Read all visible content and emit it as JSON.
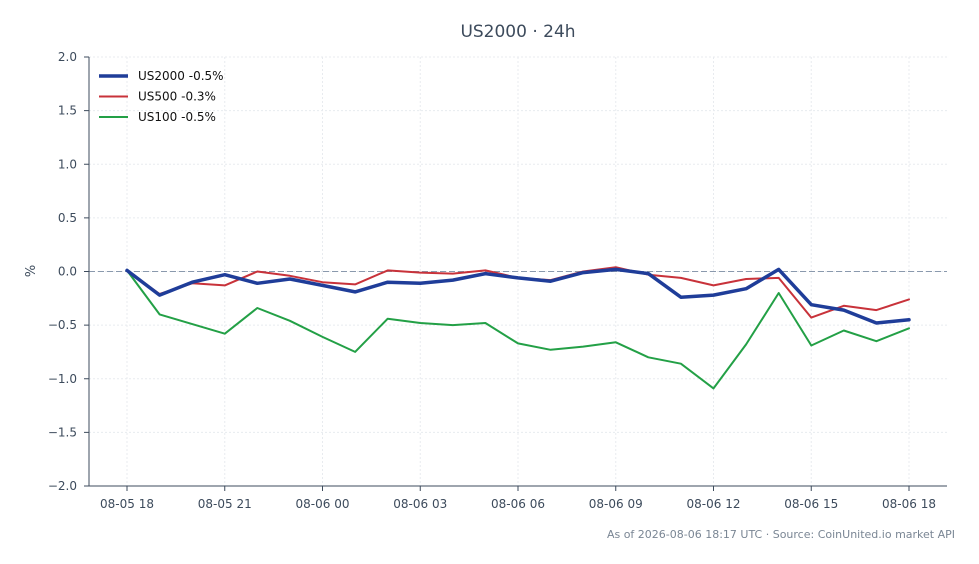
{
  "chart_data": {
    "type": "line",
    "title": "US2000 · 24h",
    "xlabel": "",
    "ylabel": "%",
    "ylim": [
      -2.0,
      2.0
    ],
    "yticks": [
      2.0,
      1.5,
      1.0,
      0.5,
      0.0,
      -0.5,
      -1.0,
      -1.5,
      -2.0
    ],
    "ytick_labels": [
      "2.0",
      "1.5",
      "1.0",
      "0.5",
      "0.0",
      "−0.5",
      "−1.0",
      "−1.5",
      "−2.0"
    ],
    "xtick_labels": [
      "08-05 18",
      "08-05 21",
      "08-06 00",
      "08-06 03",
      "08-06 06",
      "08-06 09",
      "08-06 12",
      "08-06 15",
      "08-06 18"
    ],
    "x_hours": [
      0,
      1,
      2,
      3,
      4,
      5,
      6,
      7,
      8,
      9,
      10,
      11,
      12,
      13,
      14,
      15,
      16,
      17,
      18,
      19,
      20,
      21,
      22,
      23,
      24
    ],
    "baseline": 0.0,
    "grid": true,
    "legend_position": "top-left",
    "series": [
      {
        "name": "US2000 -0.5%",
        "color": "#1f3d99",
        "values": [
          0.01,
          -0.22,
          -0.1,
          -0.03,
          -0.11,
          -0.07,
          -0.13,
          -0.19,
          -0.1,
          -0.11,
          -0.08,
          -0.02,
          -0.06,
          -0.09,
          -0.01,
          0.02,
          -0.02,
          -0.24,
          -0.22,
          -0.16,
          0.02,
          -0.31,
          -0.36,
          -0.48,
          -0.45
        ]
      },
      {
        "name": "US500 -0.3%",
        "color": "#c8323a",
        "values": [
          0.01,
          -0.21,
          -0.11,
          -0.13,
          0.0,
          -0.04,
          -0.1,
          -0.12,
          0.01,
          -0.01,
          -0.02,
          0.01,
          -0.06,
          -0.08,
          0.0,
          0.04,
          -0.03,
          -0.06,
          -0.13,
          -0.07,
          -0.06,
          -0.43,
          -0.32,
          -0.36,
          -0.26
        ]
      },
      {
        "name": "US100 -0.5%",
        "color": "#23a046",
        "values": [
          0.01,
          -0.4,
          -0.49,
          -0.58,
          -0.34,
          -0.46,
          -0.61,
          -0.75,
          -0.44,
          -0.48,
          -0.5,
          -0.48,
          -0.67,
          -0.73,
          -0.7,
          -0.66,
          -0.8,
          -0.86,
          -1.09,
          -0.68,
          -0.2,
          -0.69,
          -0.55,
          -0.65,
          -0.53
        ]
      }
    ],
    "footer": "As of 2026-08-06 18:17 UTC · Source: CoinUnited.io market API"
  },
  "colors": {
    "axis": "#3d4b5c",
    "grid": "#e8ebef",
    "baseline": "#8a99ad"
  }
}
